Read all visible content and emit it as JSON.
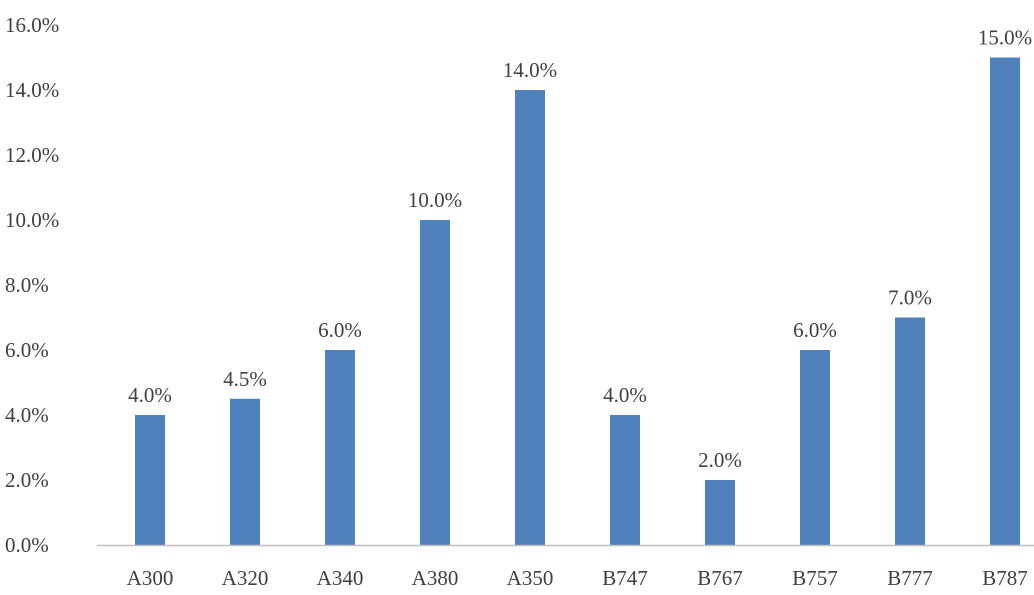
{
  "chart_data": {
    "type": "bar",
    "categories": [
      "A300",
      "A320",
      "A340",
      "A380",
      "A350",
      "B747",
      "B767",
      "B757",
      "B777",
      "B787"
    ],
    "values": [
      4.0,
      4.5,
      6.0,
      10.0,
      14.0,
      4.0,
      2.0,
      6.0,
      7.0,
      15.0
    ],
    "data_labels": [
      "4.0%",
      "4.5%",
      "6.0%",
      "10.0%",
      "14.0%",
      "4.0%",
      "2.0%",
      "6.0%",
      "7.0%",
      "15.0%"
    ],
    "yticks": [
      0,
      2,
      4,
      6,
      8,
      10,
      12,
      14,
      16
    ],
    "ytick_labels": [
      "0.0%",
      "2.0%",
      "4.0%",
      "6.0%",
      "8.0%",
      "10.0%",
      "12.0%",
      "14.0%",
      "16.0%"
    ],
    "ylim": [
      0,
      16
    ],
    "title": "",
    "xlabel": "",
    "ylabel": "",
    "grid": false,
    "legend": false,
    "bar_color": "#4F81BD",
    "axis_color": "#BFBFBF",
    "text_color": "#404040"
  }
}
